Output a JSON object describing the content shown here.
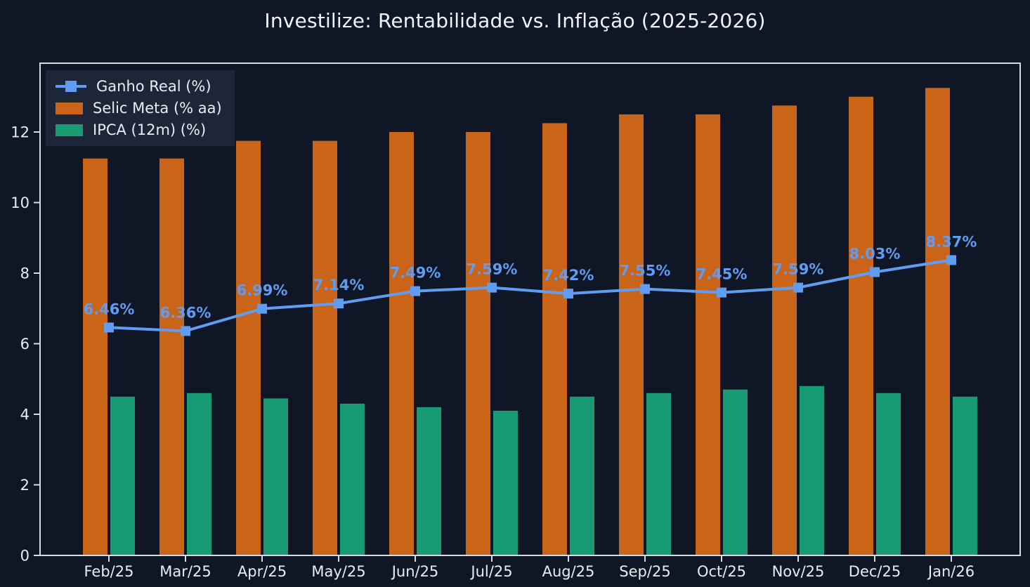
{
  "chart_data": {
    "type": "bar",
    "subtype": "grouped-bars-with-line-overlay",
    "title": "Investilize: Rentabilidade vs. Inflação (2025-2026)",
    "categories": [
      "Feb/25",
      "Mar/25",
      "Apr/25",
      "May/25",
      "Jun/25",
      "Jul/25",
      "Aug/25",
      "Sep/25",
      "Oct/25",
      "Nov/25",
      "Dec/25",
      "Jan/26"
    ],
    "series": [
      {
        "name": "Ganho Real (%)",
        "type": "line",
        "color": "#5f9cf2",
        "values": [
          6.46,
          6.36,
          6.99,
          7.14,
          7.49,
          7.59,
          7.42,
          7.55,
          7.45,
          7.59,
          8.03,
          8.37
        ],
        "point_labels": [
          "6.46%",
          "6.36%",
          "6.99%",
          "7.14%",
          "7.49%",
          "7.59%",
          "7.42%",
          "7.55%",
          "7.45%",
          "7.59%",
          "8.03%",
          "8.37%"
        ]
      },
      {
        "name": "Selic Meta (% aa)",
        "type": "bar",
        "color": "#c96419",
        "values": [
          11.25,
          11.25,
          11.75,
          11.75,
          12.0,
          12.0,
          12.25,
          12.5,
          12.5,
          12.75,
          13.0,
          13.25
        ]
      },
      {
        "name": "IPCA (12m) (%)",
        "type": "bar",
        "color": "#189b72",
        "values": [
          4.5,
          4.6,
          4.45,
          4.3,
          4.2,
          4.1,
          4.5,
          4.6,
          4.7,
          4.8,
          4.6,
          4.5
        ]
      }
    ],
    "y_ticks": [
      "0",
      "2",
      "4",
      "6",
      "8",
      "10",
      "12"
    ],
    "ylim": [
      0,
      13.95
    ],
    "grid": false,
    "legend": {
      "position": "upper-left"
    },
    "colors": {
      "background": "#0f1726",
      "plot_border": "#d6dde2",
      "tick_text": "#e9edf2",
      "title_text": "#f2f5f8",
      "legend_background": "#1d283a"
    }
  }
}
